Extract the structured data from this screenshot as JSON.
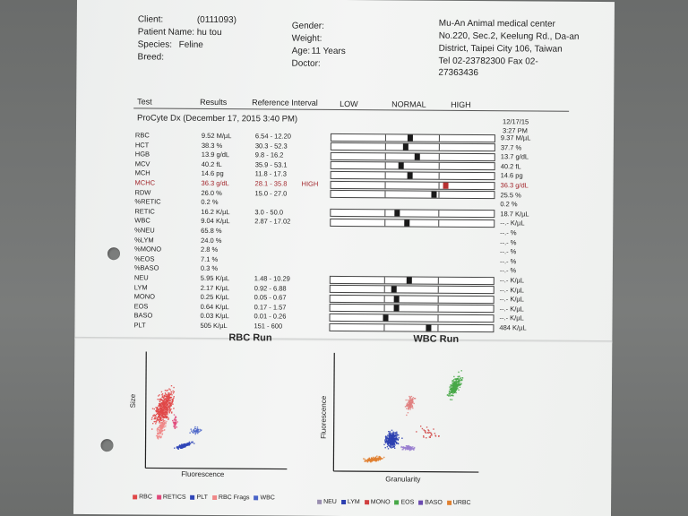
{
  "header": {
    "client_label": "Client:",
    "client_value": "(0111093)",
    "patient_label": "Patient Name:",
    "patient_value": "hu tou",
    "species_label": "Species:",
    "species_value": "Feline",
    "breed_label": "Breed:",
    "gender_label": "Gender:",
    "weight_label": "Weight:",
    "age_label": "Age:",
    "age_value": "11 Years",
    "doctor_label": "Doctor:",
    "clinic_name": "Mu-An Animal medical center",
    "clinic_addr1": "No.220, Sec.2, Keelung Rd., Da-an",
    "clinic_addr2": "District, Taipei City 106, Taiwan",
    "clinic_tel": "Tel 02-23782300  Fax 02-",
    "clinic_fax": "27363436"
  },
  "columns": {
    "test": "Test",
    "results": "Results",
    "reference": "Reference Interval",
    "low": "LOW",
    "normal": "NORMAL",
    "high": "HIGH"
  },
  "run": {
    "title": "ProCyte Dx (December 17, 2015 3:40 PM)",
    "prev_date": "12/17/15",
    "prev_time": "3:27 PM"
  },
  "rows": [
    {
      "test": "RBC",
      "result": "9.52 M/µL",
      "ref": "6.54 - 12.20",
      "flag": "",
      "prev": "9.37 M/µL",
      "marker": 0.48
    },
    {
      "test": "HCT",
      "result": "38.3 %",
      "ref": "30.3 - 52.3",
      "flag": "",
      "prev": "37.7 %",
      "marker": 0.45
    },
    {
      "test": "HGB",
      "result": "13.9 g/dL",
      "ref": "9.8 - 16.2",
      "flag": "",
      "prev": "13.7 g/dL",
      "marker": 0.52
    },
    {
      "test": "MCV",
      "result": "40.2 fL",
      "ref": "35.9 - 53.1",
      "flag": "",
      "prev": "40.2 fL",
      "marker": 0.42
    },
    {
      "test": "MCH",
      "result": "14.6 pg",
      "ref": "11.8 - 17.3",
      "flag": "",
      "prev": "14.6 pg",
      "marker": 0.48
    },
    {
      "test": "MCHC",
      "result": "36.3 g/dL",
      "ref": "28.1 - 35.8",
      "flag": "HIGH",
      "prev": "36.3 g/dL",
      "marker": 0.7,
      "high": true
    },
    {
      "test": "RDW",
      "result": "26.0 %",
      "ref": "15.0 - 27.0",
      "flag": "",
      "prev": "25.5 %",
      "marker": 0.63
    },
    {
      "test": "%RETIC",
      "result": "0.2 %",
      "ref": "",
      "flag": "",
      "prev": "0.2 %",
      "marker": null
    },
    {
      "test": "RETIC",
      "result": "16.2 K/µL",
      "ref": "3.0 - 50.0",
      "flag": "",
      "prev": "18.7 K/µL",
      "marker": 0.4
    },
    {
      "test": "WBC",
      "result": "9.04 K/µL",
      "ref": "2.87 - 17.02",
      "flag": "",
      "prev": "--.- K/µL",
      "marker": 0.46
    },
    {
      "test": "%NEU",
      "result": "65.8 %",
      "ref": "",
      "flag": "",
      "prev": "--.- %",
      "marker": null
    },
    {
      "test": "%LYM",
      "result": "24.0 %",
      "ref": "",
      "flag": "",
      "prev": "--.- %",
      "marker": null
    },
    {
      "test": "%MONO",
      "result": "2.8 %",
      "ref": "",
      "flag": "",
      "prev": "--.- %",
      "marker": null
    },
    {
      "test": "%EOS",
      "result": "7.1 %",
      "ref": "",
      "flag": "",
      "prev": "--.- %",
      "marker": null
    },
    {
      "test": "%BASO",
      "result": "0.3 %",
      "ref": "",
      "flag": "",
      "prev": "--.- %",
      "marker": null
    },
    {
      "test": "NEU",
      "result": "5.95 K/µL",
      "ref": "1.48 - 10.29",
      "flag": "",
      "prev": "--.- K/µL",
      "marker": 0.48
    },
    {
      "test": "LYM",
      "result": "2.17 K/µL",
      "ref": "0.92 - 6.88",
      "flag": "",
      "prev": "--.- K/µL",
      "marker": 0.38
    },
    {
      "test": "MONO",
      "result": "0.25 K/µL",
      "ref": "0.05 - 0.67",
      "flag": "",
      "prev": "--.- K/µL",
      "marker": 0.4
    },
    {
      "test": "EOS",
      "result": "0.64 K/µL",
      "ref": "0.17 - 1.57",
      "flag": "",
      "prev": "--.- K/µL",
      "marker": 0.4
    },
    {
      "test": "BASO",
      "result": "0.03 K/µL",
      "ref": "0.01 - 0.26",
      "flag": "",
      "prev": "--.- K/µL",
      "marker": 0.33
    },
    {
      "test": "PLT",
      "result": "505 K/µL",
      "ref": "151 - 600",
      "flag": "",
      "prev": "484 K/µL",
      "marker": 0.6
    }
  ],
  "bar_rows": [
    0,
    1,
    2,
    3,
    4,
    5,
    6,
    8,
    9,
    15,
    16,
    17,
    18,
    19,
    20
  ],
  "rbc_run": {
    "title": "RBC Run",
    "y_label": "Size",
    "x_label": "Fluorescence",
    "legend": [
      {
        "label": "RBC",
        "color": "#e04848"
      },
      {
        "label": "RETICS",
        "color": "#e0487a"
      },
      {
        "label": "PLT",
        "color": "#3046b8"
      },
      {
        "label": "RBC Frags",
        "color": "#f08888"
      },
      {
        "label": "WBC",
        "color": "#4a64c8"
      }
    ]
  },
  "wbc_run": {
    "title": "WBC Run",
    "y_label": "Fluorescence",
    "x_label": "Granularity",
    "legend": [
      {
        "label": "NEU",
        "color": "#9a8fb0"
      },
      {
        "label": "LYM",
        "color": "#2c3fb0"
      },
      {
        "label": "MONO",
        "color": "#d04040"
      },
      {
        "label": "EOS",
        "color": "#48a848"
      },
      {
        "label": "BASO",
        "color": "#6a4ab0"
      },
      {
        "label": "URBC",
        "color": "#e08030"
      }
    ]
  },
  "colors": {
    "high_flag": "#a2262c",
    "paper": "#f1f2f1",
    "background": "#6d6f6e"
  }
}
